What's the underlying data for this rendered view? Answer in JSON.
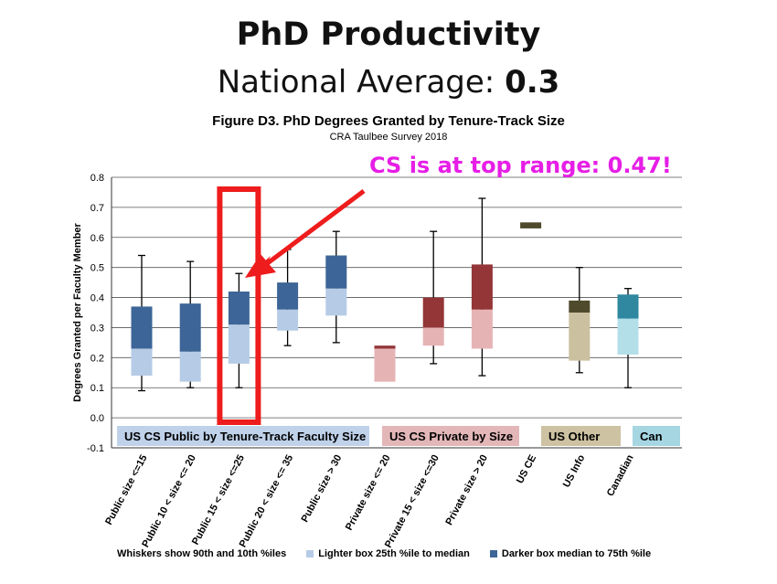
{
  "slide": {
    "title": "PhD Productivity",
    "subtitle_prefix": "National Average: ",
    "subtitle_value": "0.3",
    "callout": "CS is at top range: 0.47!"
  },
  "chart_data": {
    "type": "box",
    "title": "Figure D3. PhD Degrees Granted by Tenure-Track Size",
    "subtitle": "CRA Taulbee Survey 2018",
    "ylabel": "Degrees Granted per Faculty Member",
    "xlabel": "",
    "ylim": [
      -0.1,
      0.8
    ],
    "yticks": [
      "-0.1",
      "0.0",
      "0.1",
      "0.2",
      "0.3",
      "0.4",
      "0.5",
      "0.6",
      "0.7",
      "0.8"
    ],
    "grid": true,
    "categories": [
      "Public size <=15",
      "Public 10 < size <= 20",
      "Public 15 < size <=25",
      "Public 20 < size <= 35",
      "Public size > 30",
      "Private size <= 20",
      "Private 15 < size <=30",
      "Private size > 20",
      "US CE",
      "US Info",
      "Canadian"
    ],
    "boxes": [
      {
        "p10": 0.09,
        "p25": 0.14,
        "median": 0.23,
        "p75": 0.37,
        "p90": 0.54,
        "group": 0
      },
      {
        "p10": 0.1,
        "p25": 0.12,
        "median": 0.22,
        "p75": 0.38,
        "p90": 0.52,
        "group": 0
      },
      {
        "p10": 0.1,
        "p25": 0.18,
        "median": 0.31,
        "p75": 0.42,
        "p90": 0.48,
        "group": 0
      },
      {
        "p10": 0.24,
        "p25": 0.29,
        "median": 0.36,
        "p75": 0.45,
        "p90": 0.56,
        "group": 0
      },
      {
        "p10": 0.25,
        "p25": 0.34,
        "median": 0.43,
        "p75": 0.54,
        "p90": 0.62,
        "group": 0
      },
      {
        "p10": null,
        "p25": 0.12,
        "median": 0.23,
        "p75": 0.24,
        "p90": null,
        "group": 1
      },
      {
        "p10": 0.18,
        "p25": 0.24,
        "median": 0.3,
        "p75": 0.4,
        "p90": 0.62,
        "group": 1
      },
      {
        "p10": 0.14,
        "p25": 0.23,
        "median": 0.36,
        "p75": 0.51,
        "p90": 0.73,
        "group": 1
      },
      {
        "p10": null,
        "p25": 0.63,
        "median": 0.63,
        "p75": 0.65,
        "p90": null,
        "group": 2
      },
      {
        "p10": 0.15,
        "p25": 0.19,
        "median": 0.35,
        "p75": 0.39,
        "p90": 0.5,
        "group": 2
      },
      {
        "p10": 0.1,
        "p25": 0.21,
        "median": 0.33,
        "p75": 0.41,
        "p90": 0.43,
        "group": 3
      }
    ],
    "groups": [
      {
        "name": "US CS Public by Tenure-Track Faculty Size",
        "light": "#b6cbe5",
        "dark": "#3d6597",
        "label_bg": "#bfd2ea"
      },
      {
        "name": "US CS Private by Size",
        "light": "#e6b3b4",
        "dark": "#943537",
        "label_bg": "#e3b7b8"
      },
      {
        "name": "US Other",
        "light": "#cbc09f",
        "dark": "#4f4a2c",
        "label_bg": "#cdc3a2"
      },
      {
        "name": "Can",
        "light": "#b2dfe8",
        "dark": "#2f87a0",
        "label_bg": "#a5d6e2"
      }
    ],
    "highlight_category": 2,
    "highlight_color": "#ee1c1c",
    "legend": {
      "whiskers": "Whiskers show 90th and 10th %iles",
      "lighter": "Lighter box  25th %ile to median",
      "darker": "Darker box  median to 75th %ile",
      "lighter_color": "#b6cbe5",
      "darker_color": "#3d6597"
    }
  }
}
